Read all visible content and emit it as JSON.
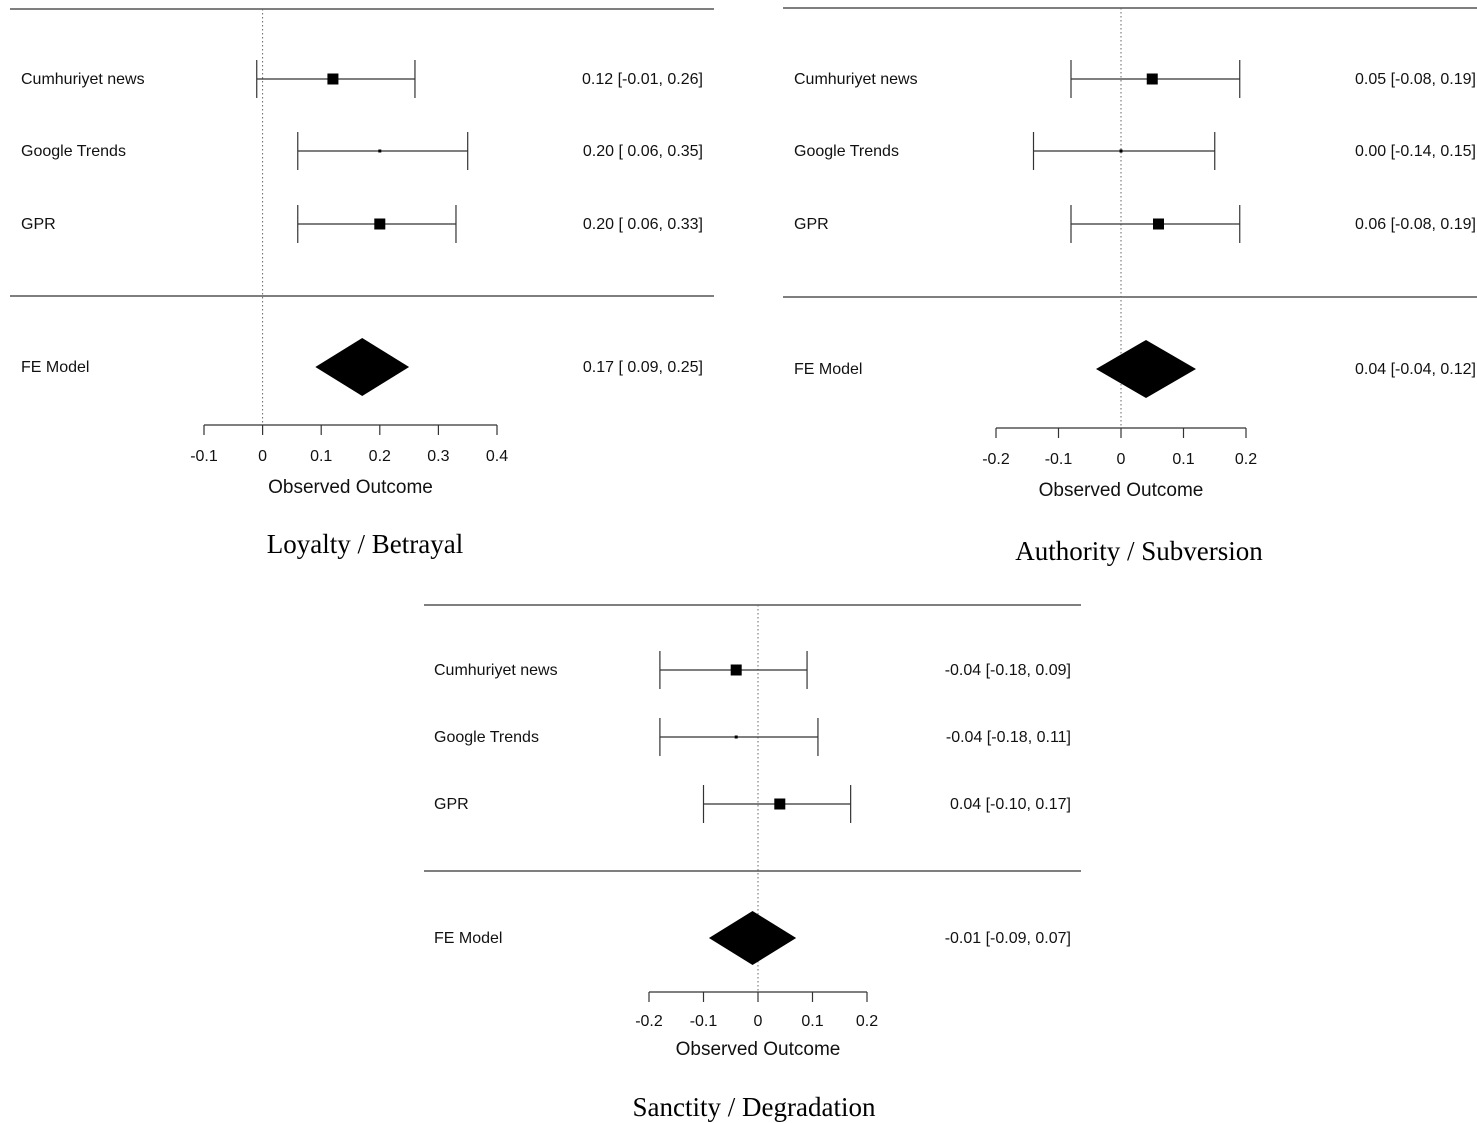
{
  "chart_data": [
    {
      "type": "forest",
      "caption": "Loyalty / Betrayal",
      "xlabel": "Observed Outcome",
      "ticks": [
        "-0.1",
        "0",
        "0.1",
        "0.2",
        "0.3",
        "0.4"
      ],
      "tick_values": [
        -0.1,
        0,
        0.1,
        0.2,
        0.3,
        0.4
      ],
      "xlim": [
        -0.1,
        0.4
      ],
      "reference_line": 0,
      "studies": [
        {
          "label": "Cumhuriyet news",
          "estimate": 0.12,
          "lower": -0.01,
          "upper": 0.26,
          "ci_text": "0.12 [-0.01, 0.26]",
          "marker": "square",
          "weight": "large"
        },
        {
          "label": "Google Trends",
          "estimate": 0.2,
          "lower": 0.06,
          "upper": 0.35,
          "ci_text": "0.20 [ 0.06, 0.35]",
          "marker": "square",
          "weight": "tiny"
        },
        {
          "label": "GPR",
          "estimate": 0.2,
          "lower": 0.06,
          "upper": 0.33,
          "ci_text": "0.20 [ 0.06, 0.33]",
          "marker": "square",
          "weight": "large"
        }
      ],
      "summary": {
        "label": "FE Model",
        "estimate": 0.17,
        "lower": 0.09,
        "upper": 0.25,
        "ci_text": "0.17 [ 0.09, 0.25]"
      }
    },
    {
      "type": "forest",
      "caption": "Authority / Subversion",
      "xlabel": "Observed Outcome",
      "ticks": [
        "-0.2",
        "-0.1",
        "0",
        "0.1",
        "0.2"
      ],
      "tick_values": [
        -0.2,
        -0.1,
        0,
        0.1,
        0.2
      ],
      "xlim": [
        -0.2,
        0.2
      ],
      "reference_line": 0,
      "studies": [
        {
          "label": "Cumhuriyet news",
          "estimate": 0.05,
          "lower": -0.08,
          "upper": 0.19,
          "ci_text": "0.05 [-0.08, 0.19]",
          "marker": "square",
          "weight": "large"
        },
        {
          "label": "Google Trends",
          "estimate": 0.0,
          "lower": -0.14,
          "upper": 0.15,
          "ci_text": "0.00 [-0.14, 0.15]",
          "marker": "square",
          "weight": "tiny"
        },
        {
          "label": "GPR",
          "estimate": 0.06,
          "lower": -0.08,
          "upper": 0.19,
          "ci_text": "0.06 [-0.08, 0.19]",
          "marker": "square",
          "weight": "large"
        }
      ],
      "summary": {
        "label": "FE Model",
        "estimate": 0.04,
        "lower": -0.04,
        "upper": 0.12,
        "ci_text": "0.04 [-0.04, 0.12]"
      }
    },
    {
      "type": "forest",
      "caption": "Sanctity / Degradation",
      "xlabel": "Observed Outcome",
      "ticks": [
        "-0.2",
        "-0.1",
        "0",
        "0.1",
        "0.2"
      ],
      "tick_values": [
        -0.2,
        -0.1,
        0,
        0.1,
        0.2
      ],
      "xlim": [
        -0.2,
        0.2
      ],
      "reference_line": 0,
      "studies": [
        {
          "label": "Cumhuriyet news",
          "estimate": -0.04,
          "lower": -0.18,
          "upper": 0.09,
          "ci_text": "-0.04 [-0.18, 0.09]",
          "marker": "square",
          "weight": "large"
        },
        {
          "label": "Google Trends",
          "estimate": -0.04,
          "lower": -0.18,
          "upper": 0.11,
          "ci_text": "-0.04 [-0.18, 0.11]",
          "marker": "square",
          "weight": "tiny"
        },
        {
          "label": "GPR",
          "estimate": 0.04,
          "lower": -0.1,
          "upper": 0.17,
          "ci_text": "0.04 [-0.10, 0.17]",
          "marker": "square",
          "weight": "large"
        }
      ],
      "summary": {
        "label": "FE Model",
        "estimate": -0.01,
        "lower": -0.09,
        "upper": 0.07,
        "ci_text": "-0.01 [-0.09, 0.07]"
      }
    }
  ]
}
